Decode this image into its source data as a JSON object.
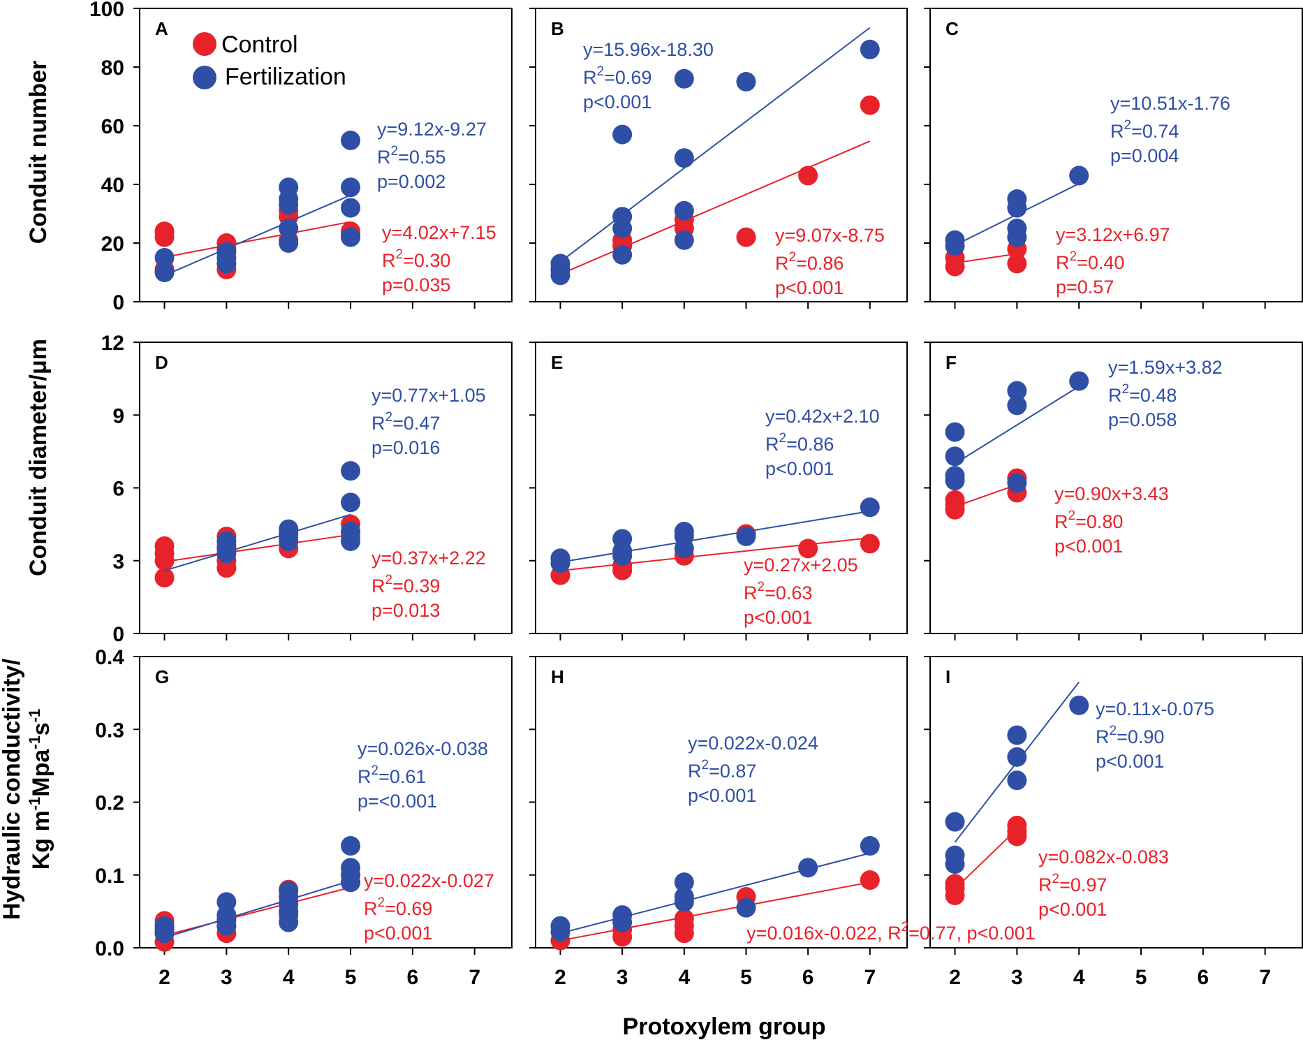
{
  "colors": {
    "control": "#e8222a",
    "fertilization": "#2f4fa6"
  },
  "legend": {
    "control": "Control",
    "fertilization": "Fertilization"
  },
  "x_axis": {
    "label": "Protoxylem group",
    "ticks": [
      "2",
      "3",
      "4",
      "5",
      "6",
      "7"
    ],
    "range": [
      1.6,
      7.6
    ]
  },
  "y_axes": [
    {
      "label": "Conduit number",
      "range": [
        0,
        100
      ],
      "ticks": [
        "0",
        "20",
        "40",
        "60",
        "80",
        "100"
      ],
      "tick_values": [
        0,
        20,
        40,
        60,
        80,
        100
      ]
    },
    {
      "label": "Conduit diameter/μm",
      "range": [
        0,
        12
      ],
      "ticks": [
        "0",
        "3",
        "6",
        "9",
        "12"
      ],
      "tick_values": [
        0,
        3,
        6,
        9,
        12
      ]
    },
    {
      "label_line1": "Hydraulic conductivity/",
      "label_line2_base": "Kg m",
      "label_line2_sup1": "-1",
      "label_line2_mid": "Mpa",
      "label_line2_sup2": "-1",
      "label_line2_end": "s",
      "label_line2_sup3": "-1",
      "range": [
        0,
        0.4
      ],
      "ticks": [
        "0.0",
        "0.1",
        "0.2",
        "0.3",
        "0.4"
      ],
      "tick_values": [
        0,
        0.1,
        0.2,
        0.3,
        0.4
      ]
    }
  ],
  "chart_data": [
    {
      "panel": "A",
      "type": "scatter",
      "row": 0,
      "col": 0,
      "control": {
        "points": [
          [
            2,
            24
          ],
          [
            2,
            22
          ],
          [
            2,
            11
          ],
          [
            3,
            20
          ],
          [
            3,
            18
          ],
          [
            3,
            11
          ],
          [
            4,
            31
          ],
          [
            4,
            29
          ],
          [
            4,
            21
          ],
          [
            5,
            24
          ],
          [
            5,
            23
          ]
        ],
        "fit": {
          "slope": 4.02,
          "intercept": 7.15,
          "x": [
            2,
            5
          ]
        },
        "eq": "y=4.02x+7.15",
        "r2": "=0.30",
        "p": "p=0.035"
      },
      "fertilization": {
        "points": [
          [
            2,
            15
          ],
          [
            2,
            10
          ],
          [
            3,
            17
          ],
          [
            3,
            15
          ],
          [
            3,
            13
          ],
          [
            4,
            39
          ],
          [
            4,
            35
          ],
          [
            4,
            33
          ],
          [
            4,
            25
          ],
          [
            4,
            20
          ],
          [
            5,
            55
          ],
          [
            5,
            39
          ],
          [
            5,
            32
          ],
          [
            5,
            22
          ]
        ],
        "fit": {
          "slope": 9.12,
          "intercept": -9.27,
          "x": [
            2,
            5
          ]
        },
        "eq": "y=9.12x-9.27",
        "r2": "=0.55",
        "p": "p=0.002"
      }
    },
    {
      "panel": "B",
      "type": "scatter",
      "row": 0,
      "col": 1,
      "control": {
        "points": [
          [
            2,
            11
          ],
          [
            3,
            21
          ],
          [
            3,
            19
          ],
          [
            4,
            28
          ],
          [
            4,
            25
          ],
          [
            5,
            22
          ],
          [
            6,
            43
          ],
          [
            7,
            67
          ]
        ],
        "fit": {
          "slope": 9.07,
          "intercept": -8.75,
          "x": [
            2,
            7
          ]
        },
        "eq": "y=9.07x-8.75",
        "r2": "=0.86",
        "p": "p<0.001"
      },
      "fertilization": {
        "points": [
          [
            2,
            13
          ],
          [
            2,
            11
          ],
          [
            2,
            9
          ],
          [
            3,
            57
          ],
          [
            3,
            29
          ],
          [
            3,
            25
          ],
          [
            3,
            16
          ],
          [
            4,
            76
          ],
          [
            4,
            49
          ],
          [
            4,
            31
          ],
          [
            4,
            21
          ],
          [
            5,
            75
          ],
          [
            7,
            86
          ]
        ],
        "fit": {
          "slope": 15.96,
          "intercept": -18.3,
          "x": [
            2,
            7
          ]
        },
        "eq": "y=15.96x-18.30",
        "r2": "=0.69",
        "p": "p<0.001"
      }
    },
    {
      "panel": "C",
      "type": "scatter",
      "row": 0,
      "col": 2,
      "control": {
        "points": [
          [
            2,
            15
          ],
          [
            2,
            12
          ],
          [
            3,
            18
          ],
          [
            3,
            13
          ]
        ],
        "fit": {
          "slope": 3.12,
          "intercept": 6.97,
          "x": [
            2,
            3
          ]
        },
        "eq": "y=3.12x+6.97",
        "r2": "=0.40",
        "p": "p=0.57"
      },
      "fertilization": {
        "points": [
          [
            2,
            21
          ],
          [
            2,
            19
          ],
          [
            3,
            35
          ],
          [
            3,
            32
          ],
          [
            3,
            25
          ],
          [
            3,
            22
          ],
          [
            4,
            43
          ]
        ],
        "fit": {
          "slope": 10.51,
          "intercept": -1.76,
          "x": [
            2,
            4
          ]
        },
        "eq": "y=10.51x-1.76",
        "r2": "=0.74",
        "p": "p=0.004"
      }
    },
    {
      "panel": "D",
      "type": "scatter",
      "row": 1,
      "col": 0,
      "control": {
        "points": [
          [
            2,
            3.6
          ],
          [
            2,
            3.3
          ],
          [
            2,
            3.0
          ],
          [
            2,
            2.3
          ],
          [
            3,
            4.0
          ],
          [
            3,
            3.6
          ],
          [
            3,
            3.0
          ],
          [
            3,
            2.7
          ],
          [
            4,
            3.9
          ],
          [
            4,
            3.5
          ],
          [
            5,
            4.5
          ],
          [
            5,
            4.0
          ]
        ],
        "fit": {
          "slope": 0.37,
          "intercept": 2.22,
          "x": [
            2,
            5
          ]
        },
        "eq": "y=0.37x+2.22",
        "r2": "=0.39",
        "p": "p=0.013"
      },
      "fertilization": {
        "points": [
          [
            3,
            3.8
          ],
          [
            3,
            3.5
          ],
          [
            3,
            3.3
          ],
          [
            4,
            4.3
          ],
          [
            4,
            4.1
          ],
          [
            4,
            3.8
          ],
          [
            5,
            6.7
          ],
          [
            5,
            5.4
          ],
          [
            5,
            4.2
          ],
          [
            5,
            3.8
          ]
        ],
        "fit": {
          "slope": 0.77,
          "intercept": 1.05,
          "x": [
            2,
            5
          ]
        },
        "eq": "y=0.77x+1.05",
        "r2": "=0.47",
        "p": "p=0.016"
      }
    },
    {
      "panel": "E",
      "type": "scatter",
      "row": 1,
      "col": 1,
      "control": {
        "points": [
          [
            2,
            2.4
          ],
          [
            3,
            2.8
          ],
          [
            3,
            2.6
          ],
          [
            4,
            3.2
          ],
          [
            5,
            4.1
          ],
          [
            6,
            3.5
          ],
          [
            7,
            3.7
          ]
        ],
        "fit": {
          "slope": 0.27,
          "intercept": 2.05,
          "x": [
            2,
            7
          ]
        },
        "eq": "y=0.27x+2.05",
        "r2": "=0.63",
        "p": "p<0.001"
      },
      "fertilization": {
        "points": [
          [
            2,
            3.1
          ],
          [
            2,
            2.9
          ],
          [
            3,
            3.9
          ],
          [
            3,
            3.4
          ],
          [
            3,
            3.2
          ],
          [
            4,
            4.2
          ],
          [
            4,
            4.0
          ],
          [
            4,
            3.5
          ],
          [
            5,
            4.0
          ],
          [
            7,
            5.2
          ]
        ],
        "fit": {
          "slope": 0.42,
          "intercept": 2.1,
          "x": [
            2,
            7
          ]
        },
        "eq": "y=0.42x+2.10",
        "r2": "=0.86",
        "p": "p<0.001"
      }
    },
    {
      "panel": "F",
      "type": "scatter",
      "row": 1,
      "col": 2,
      "control": {
        "points": [
          [
            2,
            5.5
          ],
          [
            2,
            5.3
          ],
          [
            2,
            5.1
          ],
          [
            3,
            6.4
          ],
          [
            3,
            5.8
          ]
        ],
        "fit": {
          "slope": 0.9,
          "intercept": 3.43,
          "x": [
            2,
            3
          ]
        },
        "eq": "y=0.90x+3.43",
        "r2": "=0.80",
        "p": "p<0.001"
      },
      "fertilization": {
        "points": [
          [
            2,
            8.3
          ],
          [
            2,
            7.3
          ],
          [
            2,
            6.5
          ],
          [
            2,
            6.3
          ],
          [
            3,
            10.0
          ],
          [
            3,
            9.4
          ],
          [
            3,
            6.2
          ],
          [
            4,
            10.4
          ]
        ],
        "fit": {
          "slope": 1.59,
          "intercept": 3.82,
          "x": [
            2,
            4
          ]
        },
        "eq": "y=1.59x+3.82",
        "r2": "=0.48",
        "p": "p=0.058"
      }
    },
    {
      "panel": "G",
      "type": "scatter",
      "row": 2,
      "col": 0,
      "control": {
        "points": [
          [
            2,
            0.037
          ],
          [
            2,
            0.02
          ],
          [
            2,
            0.008
          ],
          [
            3,
            0.04
          ],
          [
            3,
            0.03
          ],
          [
            3,
            0.02
          ],
          [
            4,
            0.08
          ],
          [
            4,
            0.06
          ],
          [
            4,
            0.045
          ],
          [
            5,
            0.09
          ],
          [
            5,
            0.1
          ]
        ],
        "fit": {
          "slope": 0.022,
          "intercept": -0.027,
          "x": [
            2,
            5
          ]
        },
        "eq": "y=0.022x-0.027",
        "r2": "=0.69",
        "p": "p<0.001"
      },
      "fertilization": {
        "points": [
          [
            2,
            0.03
          ],
          [
            2,
            0.025
          ],
          [
            2,
            0.02
          ],
          [
            3,
            0.063
          ],
          [
            3,
            0.045
          ],
          [
            3,
            0.038
          ],
          [
            3,
            0.03
          ],
          [
            4,
            0.078
          ],
          [
            4,
            0.07
          ],
          [
            4,
            0.06
          ],
          [
            4,
            0.05
          ],
          [
            4,
            0.035
          ],
          [
            5,
            0.14
          ],
          [
            5,
            0.11
          ],
          [
            5,
            0.1
          ],
          [
            5,
            0.09
          ]
        ],
        "fit": {
          "slope": 0.026,
          "intercept": -0.038,
          "x": [
            2,
            5
          ]
        },
        "eq": "y=0.026x-0.038",
        "r2": "=0.61",
        "p": "p=<0.001"
      }
    },
    {
      "panel": "H",
      "type": "scatter",
      "row": 2,
      "col": 1,
      "control": {
        "points": [
          [
            2,
            0.01
          ],
          [
            3,
            0.015
          ],
          [
            3,
            0.025
          ],
          [
            4,
            0.02
          ],
          [
            4,
            0.03
          ],
          [
            4,
            0.04
          ],
          [
            5,
            0.07
          ],
          [
            7,
            0.093
          ]
        ],
        "fit": {
          "slope": 0.016,
          "intercept": -0.022,
          "x": [
            2,
            7
          ]
        },
        "eq_full": "y=0.016x-0.022, R",
        "eq_full_mid": "=0.77, p<0.001"
      },
      "fertilization": {
        "points": [
          [
            2,
            0.03
          ],
          [
            2,
            0.022
          ],
          [
            3,
            0.045
          ],
          [
            3,
            0.035
          ],
          [
            4,
            0.09
          ],
          [
            4,
            0.07
          ],
          [
            4,
            0.063
          ],
          [
            5,
            0.055
          ],
          [
            6,
            0.11
          ],
          [
            7,
            0.14
          ]
        ],
        "fit": {
          "slope": 0.022,
          "intercept": -0.024,
          "x": [
            2,
            7
          ]
        },
        "eq": "y=0.022x-0.024",
        "r2": "=0.87",
        "p": "p<0.001"
      }
    },
    {
      "panel": "I",
      "type": "scatter",
      "row": 2,
      "col": 2,
      "control": {
        "points": [
          [
            2,
            0.088
          ],
          [
            2,
            0.082
          ],
          [
            2,
            0.072
          ],
          [
            3,
            0.168
          ],
          [
            3,
            0.16
          ],
          [
            3,
            0.153
          ]
        ],
        "fit": {
          "slope": 0.082,
          "intercept": -0.083,
          "x": [
            2,
            3
          ]
        },
        "eq": "y=0.082x-0.083",
        "r2": "=0.97",
        "p": "p<0.001"
      },
      "fertilization": {
        "points": [
          [
            2,
            0.173
          ],
          [
            2,
            0.127
          ],
          [
            2,
            0.115
          ],
          [
            3,
            0.292
          ],
          [
            3,
            0.262
          ],
          [
            3,
            0.23
          ],
          [
            4,
            0.333
          ]
        ],
        "fit": {
          "slope": 0.11,
          "intercept": -0.075,
          "x": [
            2,
            4
          ]
        },
        "eq": "y=0.11x-0.075",
        "r2": "=0.90",
        "p": "p<0.001"
      }
    }
  ]
}
